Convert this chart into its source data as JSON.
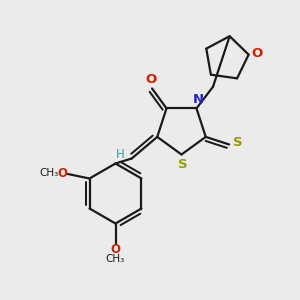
{
  "background_color": "#ebebeb",
  "bond_color": "#1a1a1a",
  "N_color": "#2222cc",
  "O_color": "#cc2200",
  "S_color": "#999900",
  "H_color": "#449999",
  "bond_width": 1.6,
  "figsize": [
    3.0,
    3.0
  ],
  "dpi": 100,
  "xlim": [
    0,
    10
  ],
  "ylim": [
    0,
    10
  ]
}
